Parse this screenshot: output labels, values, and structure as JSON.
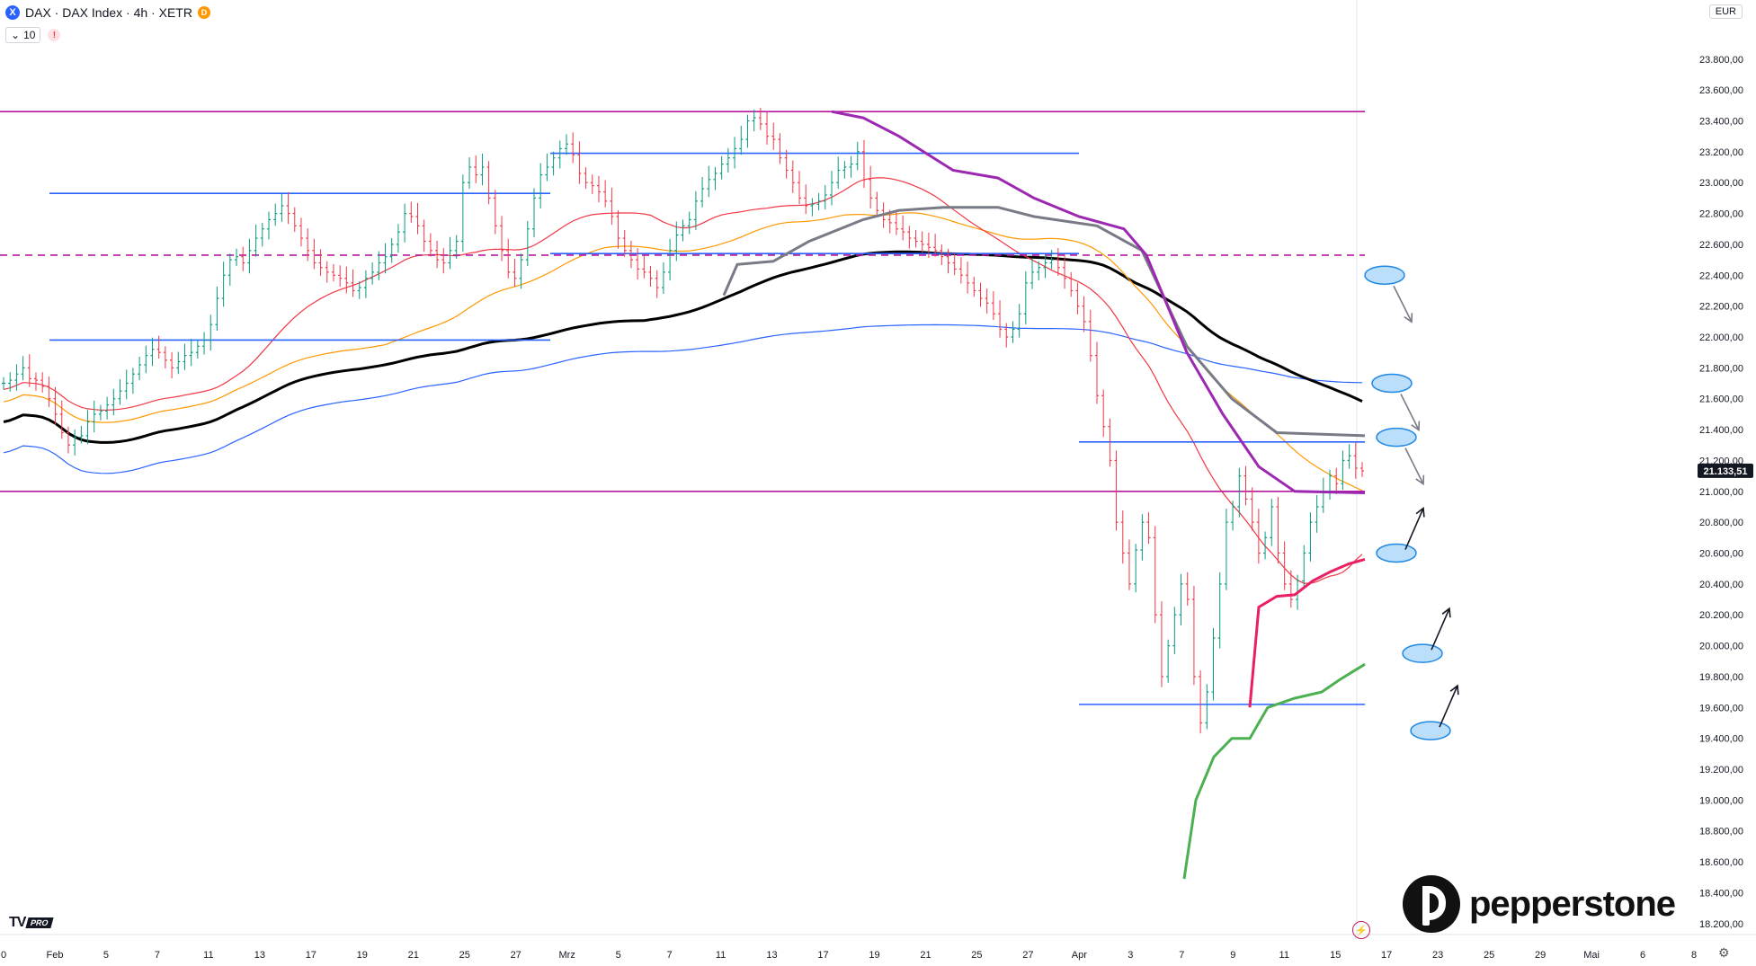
{
  "header": {
    "symbol_icon": "X",
    "title": "DAX · DAX Index · 4h · XETR",
    "badge": "D",
    "indicator_count": "10",
    "warning_icon": "!"
  },
  "currency": "EUR",
  "price_label": "21.133,51",
  "branding": {
    "tv": "TV",
    "pro": "PRO",
    "broker": "pepperstone"
  },
  "colors": {
    "bull": "#089981",
    "bear": "#f23645",
    "magenta": "#b5179e",
    "blue": "#2962ff",
    "red_ma": "#f23645",
    "orange_ma": "#ff9800",
    "blue_ma": "#2962ff",
    "black_ma": "#000000",
    "purple": "#9c27b0",
    "gray": "#787b86",
    "crimson": "#e91e63",
    "green": "#4caf50"
  },
  "chart_data": {
    "type": "candlestick",
    "timeframe": "4h",
    "ylim": [
      18100,
      23950
    ],
    "y_ticks": [
      "23.800,00",
      "23.600,00",
      "23.400,00",
      "23.200,00",
      "23.000,00",
      "22.800,00",
      "22.600,00",
      "22.400,00",
      "22.200,00",
      "22.000,00",
      "21.800,00",
      "21.600,00",
      "21.400,00",
      "21.200,00",
      "21.000,00",
      "20.800,00",
      "20.600,00",
      "20.400,00",
      "20.200,00",
      "20.000,00",
      "19.800,00",
      "19.600,00",
      "19.400,00",
      "19.200,00",
      "19.000,00",
      "18.800,00",
      "18.600,00",
      "18.400,00",
      "18.200,00"
    ],
    "x_ticks": [
      "0",
      "Feb",
      "5",
      "7",
      "11",
      "13",
      "17",
      "19",
      "21",
      "25",
      "27",
      "Mrz",
      "5",
      "7",
      "11",
      "13",
      "17",
      "19",
      "21",
      "25",
      "27",
      "Apr",
      "3",
      "7",
      "9",
      "11",
      "15",
      "17",
      "23",
      "25",
      "29",
      "Mai",
      "6",
      "8"
    ],
    "last_price": 21133.51,
    "closes": [
      21700,
      21720,
      21760,
      21800,
      21730,
      21720,
      21680,
      21600,
      21500,
      21380,
      21300,
      21350,
      21360,
      21450,
      21500,
      21520,
      21560,
      21600,
      21650,
      21700,
      21760,
      21820,
      21880,
      21920,
      21900,
      21850,
      21800,
      21840,
      21880,
      21900,
      21940,
      21980,
      22080,
      22250,
      22400,
      22500,
      22520,
      22480,
      22560,
      22640,
      22700,
      22760,
      22800,
      22850,
      22800,
      22720,
      22640,
      22560,
      22480,
      22450,
      22420,
      22400,
      22380,
      22350,
      22300,
      22320,
      22380,
      22420,
      22480,
      22520,
      22600,
      22680,
      22800,
      22780,
      22720,
      22620,
      22560,
      22500,
      22480,
      22560,
      22620,
      23000,
      23100,
      23050,
      23100,
      22900,
      22720,
      22560,
      22420,
      22380,
      22500,
      22700,
      22900,
      23050,
      23100,
      23160,
      23220,
      23250,
      23180,
      23060,
      23000,
      22980,
      22940,
      22880,
      22780,
      22640,
      22560,
      22500,
      22440,
      22420,
      22380,
      22320,
      22420,
      22560,
      22660,
      22720,
      22760,
      22880,
      22960,
      23020,
      23060,
      23120,
      23160,
      23220,
      23280,
      23400,
      23420,
      23380,
      23300,
      23280,
      23160,
      23080,
      23000,
      22900,
      22850,
      22860,
      22880,
      22920,
      23000,
      23080,
      23100,
      23120,
      23200,
      23020,
      22900,
      22820,
      22760,
      22740,
      22700,
      22680,
      22640,
      22620,
      22600,
      22580,
      22560,
      22520,
      22480,
      22440,
      22400,
      22350,
      22300,
      22250,
      22220,
      22150,
      22050,
      22000,
      22050,
      22150,
      22350,
      22420,
      22450,
      22480,
      22500,
      22450,
      22380,
      22300,
      22200,
      22100,
      21880,
      21620,
      21420,
      21200,
      20800,
      20600,
      20400,
      20620,
      20800,
      20700,
      20200,
      19800,
      20000,
      20200,
      20400,
      20300,
      19800,
      19500,
      19700,
      20050,
      20400,
      20800,
      20900,
      21100,
      20950,
      20800,
      20600,
      20700,
      20900,
      20600,
      20400,
      20300,
      20420,
      20600,
      20800,
      20900,
      21000,
      21100,
      21050,
      21200,
      21230,
      21150,
      21133
    ],
    "overlays": {
      "horizontal_levels": [
        {
          "price": 23460,
          "style": "solid",
          "color": "magenta"
        },
        {
          "price": 22530,
          "style": "dashed",
          "color": "magenta"
        },
        {
          "price": 21000,
          "style": "solid",
          "color": "magenta"
        },
        {
          "price": 23190,
          "style": "solid",
          "color": "blue",
          "segment": "Mrz"
        },
        {
          "price": 22930,
          "style": "solid",
          "color": "blue",
          "segment": "Feb"
        },
        {
          "price": 21980,
          "style": "solid",
          "color": "blue",
          "segment": "Feb"
        },
        {
          "price": 22540,
          "style": "solid",
          "color": "blue",
          "segment": "Mrz"
        },
        {
          "price": 21320,
          "style": "solid",
          "color": "blue",
          "segment": "Apr"
        },
        {
          "price": 19620,
          "style": "solid",
          "color": "blue",
          "segment": "Apr"
        }
      ],
      "annotations": [
        {
          "shape": "ellipse",
          "arrow": "down",
          "price": 22400
        },
        {
          "shape": "ellipse",
          "arrow": "down",
          "price": 21700
        },
        {
          "shape": "ellipse",
          "arrow": "down",
          "price": 21350
        },
        {
          "shape": "ellipse",
          "arrow": "up",
          "price": 20600
        },
        {
          "shape": "ellipse",
          "arrow": "up",
          "price": 19950
        },
        {
          "shape": "ellipse",
          "arrow": "up",
          "price": 19450
        }
      ]
    }
  }
}
